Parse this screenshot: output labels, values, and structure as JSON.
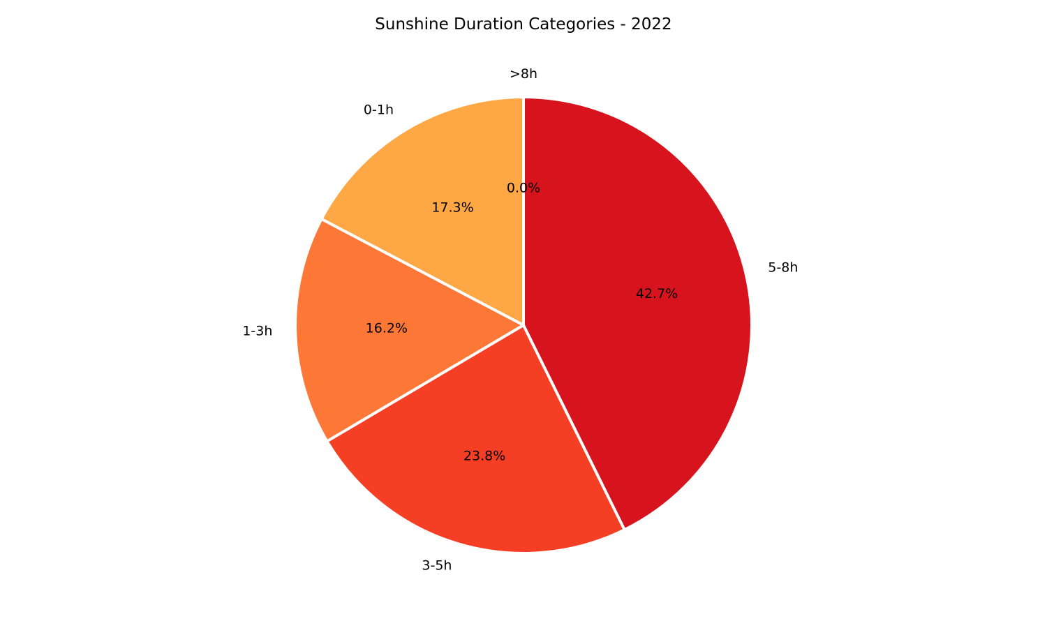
{
  "chart_data": {
    "type": "pie",
    "title": "Sunshine Duration Categories - 2022",
    "categories": [
      "0-1h",
      "1-3h",
      "3-5h",
      "5-8h",
      ">8h"
    ],
    "values": [
      17.3,
      16.2,
      23.8,
      42.7,
      0.0
    ],
    "percent_labels": [
      "17.3%",
      "16.2%",
      "23.8%",
      "42.7%",
      "0.0%"
    ],
    "colors": [
      "#fda745",
      "#fd7736",
      "#f43f25",
      "#d7141e",
      "#a50f15"
    ],
    "edge_color": "#ffffff",
    "start": "top",
    "direction": "counterclockwise"
  }
}
